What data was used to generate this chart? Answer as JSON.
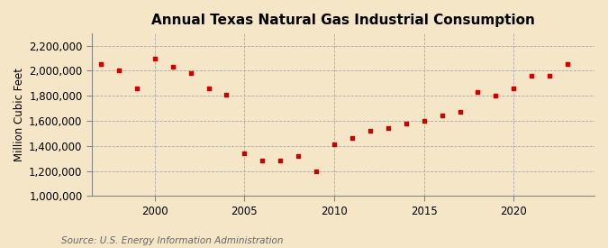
{
  "title": "Annual Texas Natural Gas Industrial Consumption",
  "ylabel": "Million Cubic Feet",
  "source": "Source: U.S. Energy Information Administration",
  "background_color": "#f5e6c8",
  "plot_background_color": "#f5e6c8",
  "grid_color": "#aaaaaa",
  "marker_color": "#cc0000",
  "years": [
    1997,
    1998,
    1999,
    2000,
    2001,
    2002,
    2003,
    2004,
    2005,
    2006,
    2007,
    2008,
    2009,
    2010,
    2011,
    2012,
    2013,
    2014,
    2015,
    2016,
    2017,
    2018,
    2019,
    2020,
    2021,
    2022,
    2023
  ],
  "values": [
    2050000,
    2000000,
    1860000,
    2100000,
    2030000,
    1980000,
    1860000,
    1810000,
    1340000,
    1280000,
    1280000,
    1320000,
    1200000,
    1410000,
    1460000,
    1520000,
    1540000,
    1580000,
    1600000,
    1640000,
    1670000,
    1830000,
    1800000,
    1860000,
    1960000,
    1960000,
    2050000
  ],
  "ylim": [
    1000000,
    2300000
  ],
  "yticks": [
    1000000,
    1200000,
    1400000,
    1600000,
    1800000,
    2000000,
    2200000
  ],
  "xlim": [
    1996.5,
    2024.5
  ],
  "xticks": [
    2000,
    2005,
    2010,
    2015,
    2020
  ]
}
